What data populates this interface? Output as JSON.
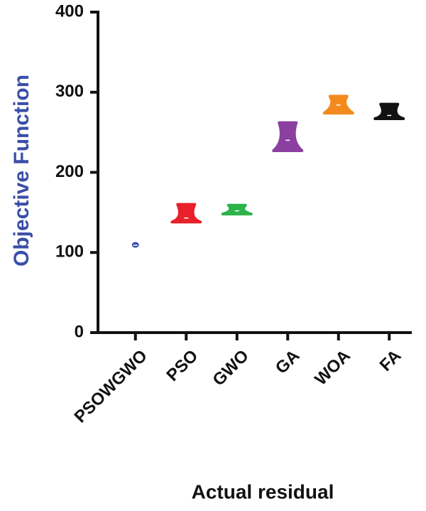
{
  "chart_data": {
    "type": "violin",
    "y_label": "Objective Function",
    "x_label": "Actual residual",
    "categories": [
      "PSOWGWO",
      "PSO",
      "GWO",
      "GA",
      "WOA",
      "FA"
    ],
    "colors": [
      "#3a4ea8",
      "#e8202a",
      "#2db34a",
      "#8b3fa0",
      "#f28a1e",
      "#111111"
    ],
    "min": [
      108,
      138,
      148,
      227,
      274,
      267
    ],
    "median": [
      109,
      143,
      152,
      240,
      284,
      271
    ],
    "max": [
      111,
      160,
      159,
      262,
      295,
      285
    ],
    "ylim": [
      0,
      400
    ],
    "yticks": [
      0,
      100,
      200,
      300,
      400
    ]
  }
}
